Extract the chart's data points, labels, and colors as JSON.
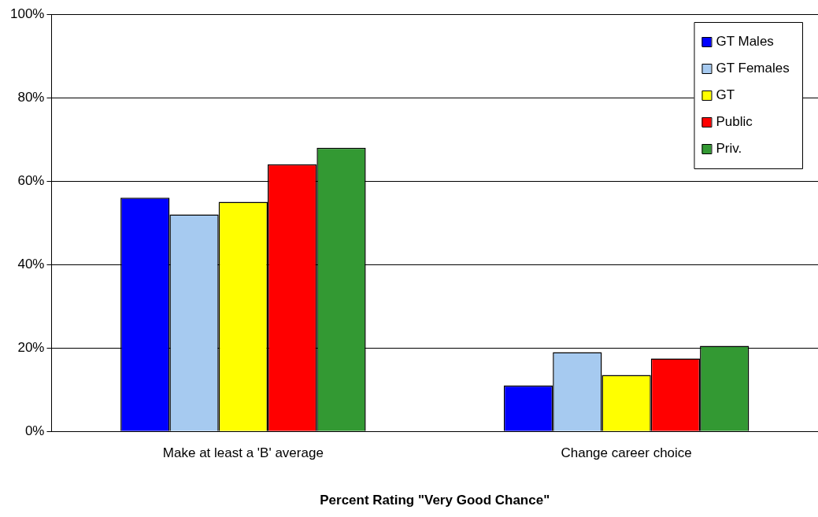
{
  "chart_data": {
    "type": "bar",
    "xlabel": "Percent Rating \"Very Good Chance\"",
    "categories": [
      "Make at least a 'B' average",
      "Change career choice"
    ],
    "series": [
      {
        "name": "GT Males",
        "color": "#0000ff",
        "values": [
          56,
          11
        ]
      },
      {
        "name": "GT Females",
        "color": "#a6caf0",
        "values": [
          52,
          19
        ]
      },
      {
        "name": "GT",
        "color": "#ffff00",
        "values": [
          55,
          13.5
        ]
      },
      {
        "name": "Public",
        "color": "#ff0000",
        "values": [
          64,
          17.5
        ]
      },
      {
        "name": "Priv.",
        "color": "#339933",
        "values": [
          68,
          20.5
        ]
      }
    ],
    "ylim": [
      0,
      100
    ],
    "yticks": [
      {
        "value": 0,
        "label": "0%"
      },
      {
        "value": 20,
        "label": "20%"
      },
      {
        "value": 40,
        "label": "40%"
      },
      {
        "value": 60,
        "label": "60%"
      },
      {
        "value": 80,
        "label": "80%"
      },
      {
        "value": 100,
        "label": "100%"
      }
    ],
    "grid": "y",
    "legend": "top right"
  }
}
